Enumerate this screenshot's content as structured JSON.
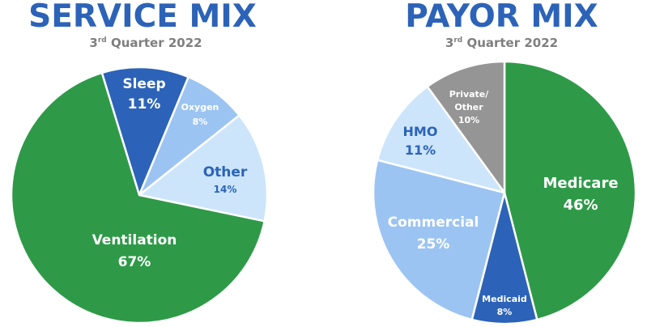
{
  "chart_data": [
    {
      "type": "pie",
      "title": "SERVICE MIX",
      "subtitle_prefix": "3",
      "subtitle_sup": "rd",
      "subtitle_suffix": " Quarter 2022",
      "slices": [
        {
          "label": "Sleep",
          "value": 11,
          "value_label": "11%",
          "color": "#2c63b8",
          "text_color": "#ffffff"
        },
        {
          "label": "Oxygen",
          "value": 8,
          "value_label": "8%",
          "color": "#9cc4f2",
          "text_color": "#ffffff"
        },
        {
          "label": "Other",
          "value": 14,
          "value_label": "14%",
          "color": "#cce5fb",
          "text_color": "#2c63b8"
        },
        {
          "label": "Ventilation",
          "value": 67,
          "value_label": "67%",
          "color": "#2e9a48",
          "text_color": "#ffffff"
        }
      ]
    },
    {
      "type": "pie",
      "title": "PAYOR MIX",
      "subtitle_prefix": "3",
      "subtitle_sup": "rd",
      "subtitle_suffix": " Quarter 2022",
      "slices": [
        {
          "label": "Medicare",
          "value": 46,
          "value_label": "46%",
          "color": "#2e9a48",
          "text_color": "#ffffff"
        },
        {
          "label": "Medicaid",
          "value": 8,
          "value_label": "8%",
          "color": "#2c63b8",
          "text_color": "#ffffff"
        },
        {
          "label": "Commercial",
          "value": 25,
          "value_label": "25%",
          "color": "#9cc4f2",
          "text_color": "#ffffff"
        },
        {
          "label": "HMO",
          "value": 11,
          "value_label": "11%",
          "color": "#cce5fb",
          "text_color": "#2c63b8"
        },
        {
          "label": "Private/\nOther",
          "value": 10,
          "value_label": "10%",
          "color": "#959595",
          "text_color": "#ffffff"
        }
      ]
    }
  ]
}
